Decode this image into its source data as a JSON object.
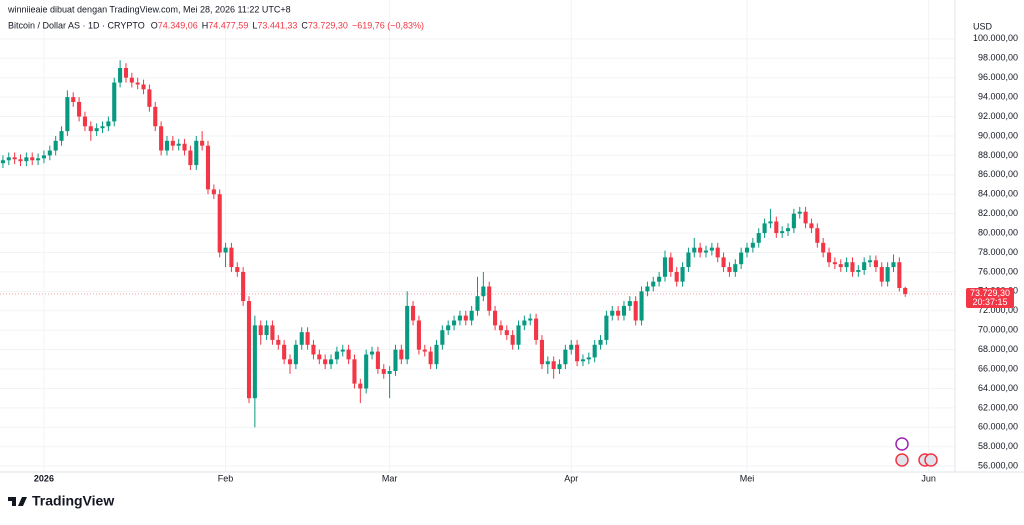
{
  "header": {
    "author_line": "winniieaie dibuat dengan TradingView.com, Mei 28, 2026 11:22 UTC+8"
  },
  "logo": "TradingView",
  "chart_data": {
    "type": "candlestick",
    "title": "Bitcoin / Dollar AS · 1D · CRYPTO",
    "ohlc_legend": [
      {
        "key": "O",
        "value": "74.349,06"
      },
      {
        "key": "H",
        "value": "74.477,59"
      },
      {
        "key": "L",
        "value": "73.441,33"
      },
      {
        "key": "C",
        "value": "73.729,30"
      }
    ],
    "change": "−619,76 (−0,83%)",
    "currency": "USD",
    "last_price_label": "73.729,30",
    "countdown": "20:37:15",
    "up_color": "#089981",
    "down_color": "#f23645",
    "grid": true,
    "xlim": [
      -0.5,
      162.5
    ],
    "xticks": [
      {
        "value": 7,
        "label": "2026"
      },
      {
        "value": 38,
        "label": "Feb"
      },
      {
        "value": 66,
        "label": "Mar"
      },
      {
        "value": 97,
        "label": "Apr"
      },
      {
        "value": 127,
        "label": "Mei"
      },
      {
        "value": 158,
        "label": "Jun"
      }
    ],
    "ylim": [
      55400,
      104000
    ],
    "yticks": [
      {
        "value": 56000,
        "label": "56.000,00"
      },
      {
        "value": 58000,
        "label": "58.000,00"
      },
      {
        "value": 60000,
        "label": "60.000,00"
      },
      {
        "value": 62000,
        "label": "62.000,00"
      },
      {
        "value": 64000,
        "label": "64.000,00"
      },
      {
        "value": 66000,
        "label": "66.000,00"
      },
      {
        "value": 68000,
        "label": "68.000,00"
      },
      {
        "value": 70000,
        "label": "70.000,00"
      },
      {
        "value": 72000,
        "label": "72.000,00"
      },
      {
        "value": 74000,
        "label": "74.000,00"
      },
      {
        "value": 76000,
        "label": "76.000,00"
      },
      {
        "value": 78000,
        "label": "78.000,00"
      },
      {
        "value": 80000,
        "label": "80.000,00"
      },
      {
        "value": 82000,
        "label": "82.000,00"
      },
      {
        "value": 84000,
        "label": "84.000,00"
      },
      {
        "value": 86000,
        "label": "86.000,00"
      },
      {
        "value": 88000,
        "label": "88.000,00"
      },
      {
        "value": 90000,
        "label": "90.000,00"
      },
      {
        "value": 92000,
        "label": "92.000,00"
      },
      {
        "value": 94000,
        "label": "94.000,00"
      },
      {
        "value": 96000,
        "label": "96.000,00"
      },
      {
        "value": 98000,
        "label": "98.000,00"
      },
      {
        "value": 100000,
        "label": "100.000,00"
      }
    ],
    "candles": [
      [
        87200,
        88000,
        86700,
        87500
      ],
      [
        87500,
        88300,
        87000,
        87800
      ],
      [
        87800,
        88300,
        87100,
        87600
      ],
      [
        87600,
        88100,
        86900,
        87400
      ],
      [
        87400,
        88300,
        86900,
        87800
      ],
      [
        87800,
        88300,
        87000,
        87500
      ],
      [
        87500,
        88200,
        87000,
        87700
      ],
      [
        87700,
        88500,
        87200,
        88000
      ],
      [
        88000,
        89000,
        87500,
        88500
      ],
      [
        88500,
        90000,
        88000,
        89500
      ],
      [
        89500,
        91000,
        89000,
        90500
      ],
      [
        90500,
        94700,
        90000,
        94000
      ],
      [
        94000,
        94500,
        93000,
        93500
      ],
      [
        93500,
        94000,
        91500,
        92000
      ],
      [
        92000,
        92500,
        90500,
        91000
      ],
      [
        91000,
        91500,
        89500,
        90500
      ],
      [
        90500,
        91300,
        90000,
        90800
      ],
      [
        90800,
        91500,
        90300,
        91000
      ],
      [
        91000,
        92000,
        90500,
        91500
      ],
      [
        91500,
        96000,
        91000,
        95500
      ],
      [
        95500,
        97800,
        95000,
        97000
      ],
      [
        97000,
        97500,
        95500,
        96000
      ],
      [
        96000,
        96500,
        95000,
        95500
      ],
      [
        95500,
        96000,
        94800,
        95300
      ],
      [
        95300,
        95800,
        94300,
        94800
      ],
      [
        94800,
        95300,
        92500,
        93000
      ],
      [
        93000,
        93500,
        90500,
        91000
      ],
      [
        91000,
        91500,
        88000,
        88500
      ],
      [
        88500,
        90000,
        88000,
        89500
      ],
      [
        89500,
        90000,
        88500,
        89000
      ],
      [
        89000,
        89700,
        88500,
        89200
      ],
      [
        89200,
        89700,
        88000,
        88500
      ],
      [
        88500,
        89000,
        86500,
        87000
      ],
      [
        87000,
        90000,
        86500,
        89500
      ],
      [
        89500,
        90500,
        88500,
        89000
      ],
      [
        89000,
        89500,
        84000,
        84500
      ],
      [
        84500,
        85000,
        83500,
        84000
      ],
      [
        84000,
        84500,
        77500,
        78000
      ],
      [
        78000,
        79000,
        76500,
        78500
      ],
      [
        78500,
        79000,
        76000,
        76500
      ],
      [
        76500,
        77000,
        75500,
        76000
      ],
      [
        76000,
        76500,
        72500,
        73000
      ],
      [
        73000,
        73500,
        62500,
        63000
      ],
      [
        63000,
        71500,
        60000,
        70500
      ],
      [
        70500,
        71000,
        68500,
        69500
      ],
      [
        69500,
        71000,
        69000,
        70500
      ],
      [
        70500,
        71000,
        68500,
        69000
      ],
      [
        69000,
        69500,
        68000,
        68500
      ],
      [
        68500,
        69000,
        66500,
        67000
      ],
      [
        67000,
        67500,
        65500,
        66500
      ],
      [
        66500,
        69000,
        66000,
        68500
      ],
      [
        68500,
        70300,
        68000,
        69800
      ],
      [
        69800,
        70300,
        68000,
        68500
      ],
      [
        68500,
        69000,
        67000,
        67500
      ],
      [
        67500,
        68000,
        66500,
        67000
      ],
      [
        67000,
        67500,
        66000,
        66500
      ],
      [
        66500,
        67500,
        66000,
        67000
      ],
      [
        67000,
        68300,
        66500,
        67800
      ],
      [
        67800,
        68500,
        67300,
        68000
      ],
      [
        68000,
        68500,
        66500,
        67000
      ],
      [
        67000,
        67500,
        64000,
        64500
      ],
      [
        64500,
        65000,
        62500,
        64000
      ],
      [
        64000,
        68000,
        63500,
        67500
      ],
      [
        67500,
        68300,
        67000,
        67800
      ],
      [
        67800,
        68300,
        65500,
        66000
      ],
      [
        66000,
        66500,
        65000,
        65500
      ],
      [
        65500,
        66300,
        63000,
        65800
      ],
      [
        65800,
        68500,
        65300,
        68000
      ],
      [
        68000,
        68500,
        66500,
        67000
      ],
      [
        67000,
        74000,
        66500,
        72500
      ],
      [
        72500,
        73000,
        70500,
        71000
      ],
      [
        71000,
        71500,
        67500,
        68000
      ],
      [
        68000,
        68500,
        67300,
        67800
      ],
      [
        67800,
        68300,
        66000,
        66500
      ],
      [
        66500,
        69000,
        66000,
        68500
      ],
      [
        68500,
        70500,
        68000,
        70000
      ],
      [
        70000,
        71000,
        69500,
        70500
      ],
      [
        70500,
        71500,
        70000,
        71000
      ],
      [
        71000,
        72000,
        70500,
        71500
      ],
      [
        71500,
        72000,
        70500,
        71000
      ],
      [
        71000,
        72500,
        70500,
        72000
      ],
      [
        72000,
        75500,
        71500,
        73500
      ],
      [
        73500,
        76000,
        73000,
        74500
      ],
      [
        74500,
        75000,
        71500,
        72000
      ],
      [
        72000,
        72500,
        70000,
        70500
      ],
      [
        70500,
        71000,
        69500,
        70000
      ],
      [
        70000,
        70500,
        69000,
        69500
      ],
      [
        69500,
        70000,
        68000,
        68500
      ],
      [
        68500,
        71000,
        68000,
        70500
      ],
      [
        70500,
        71500,
        70000,
        71000
      ],
      [
        71000,
        71700,
        70500,
        71200
      ],
      [
        71200,
        71700,
        68500,
        69000
      ],
      [
        69000,
        69500,
        66000,
        66500
      ],
      [
        66500,
        67300,
        65500,
        66800
      ],
      [
        66800,
        67300,
        65000,
        66000
      ],
      [
        66000,
        67000,
        65500,
        66500
      ],
      [
        66500,
        68500,
        66000,
        68000
      ],
      [
        68000,
        69000,
        67500,
        68500
      ],
      [
        68500,
        69000,
        66300,
        66800
      ],
      [
        66800,
        67500,
        66300,
        67000
      ],
      [
        67000,
        67700,
        66500,
        67200
      ],
      [
        67200,
        69000,
        66700,
        68500
      ],
      [
        68500,
        69500,
        68000,
        69000
      ],
      [
        69000,
        72000,
        68500,
        71500
      ],
      [
        71500,
        72500,
        71000,
        72000
      ],
      [
        72000,
        72500,
        71000,
        71500
      ],
      [
        71500,
        73000,
        71000,
        72500
      ],
      [
        72500,
        73500,
        72000,
        73000
      ],
      [
        73000,
        73500,
        70500,
        71000
      ],
      [
        71000,
        74500,
        70500,
        74000
      ],
      [
        74000,
        75000,
        73500,
        74500
      ],
      [
        74500,
        75500,
        74000,
        75000
      ],
      [
        75000,
        76000,
        74500,
        75500
      ],
      [
        75500,
        78200,
        75000,
        77500
      ],
      [
        77500,
        78000,
        75500,
        76000
      ],
      [
        76000,
        76500,
        74500,
        75000
      ],
      [
        75000,
        77000,
        74500,
        76500
      ],
      [
        76500,
        78500,
        76000,
        78000
      ],
      [
        78000,
        79500,
        77500,
        78500
      ],
      [
        78500,
        79000,
        77500,
        78000
      ],
      [
        78000,
        78700,
        77500,
        78200
      ],
      [
        78200,
        79000,
        77700,
        78500
      ],
      [
        78500,
        79000,
        77000,
        77500
      ],
      [
        77500,
        78000,
        76000,
        76500
      ],
      [
        76500,
        77000,
        75500,
        76000
      ],
      [
        76000,
        77300,
        75500,
        76800
      ],
      [
        76800,
        78500,
        76300,
        78000
      ],
      [
        78000,
        79000,
        77500,
        78500
      ],
      [
        78500,
        79500,
        78000,
        79000
      ],
      [
        79000,
        80500,
        78500,
        80000
      ],
      [
        80000,
        81500,
        79500,
        81000
      ],
      [
        81000,
        82500,
        80500,
        81200
      ],
      [
        81200,
        81700,
        79500,
        80000
      ],
      [
        80000,
        80700,
        79500,
        80200
      ],
      [
        80200,
        81000,
        79700,
        80500
      ],
      [
        80500,
        82500,
        80000,
        82000
      ],
      [
        82000,
        82700,
        81500,
        82200
      ],
      [
        82200,
        82700,
        80500,
        81000
      ],
      [
        81000,
        81500,
        80000,
        80500
      ],
      [
        80500,
        81000,
        78500,
        79000
      ],
      [
        79000,
        79500,
        77500,
        78000
      ],
      [
        78000,
        78500,
        76500,
        77000
      ],
      [
        77000,
        77500,
        76300,
        76800
      ],
      [
        76800,
        77300,
        76000,
        76500
      ],
      [
        76500,
        77500,
        76000,
        77000
      ],
      [
        77000,
        77500,
        75500,
        76000
      ],
      [
        76000,
        76700,
        75500,
        76200
      ],
      [
        76200,
        77500,
        75700,
        77000
      ],
      [
        77000,
        77700,
        76500,
        77200
      ],
      [
        77200,
        77700,
        76000,
        76500
      ],
      [
        76500,
        77000,
        74500,
        75000
      ],
      [
        75000,
        77000,
        74500,
        76500
      ],
      [
        76500,
        77800,
        76000,
        77000
      ],
      [
        77000,
        77500,
        74000,
        74349.06
      ],
      [
        74349.06,
        74477.59,
        73441.33,
        73729.3
      ]
    ]
  }
}
